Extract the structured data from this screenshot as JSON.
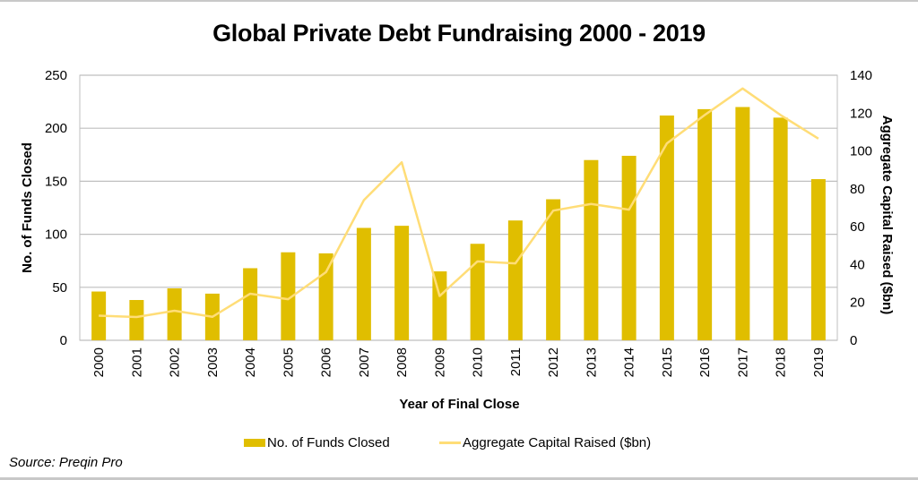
{
  "chart_data": {
    "type": "bar",
    "title": "Global Private Debt Fundraising 2000 - 2019",
    "xlabel": "Year of Final Close",
    "ylabel": "No. of Funds Closed",
    "y2label": "Aggregate Capital Raised ($bn)",
    "ylim": [
      0,
      250
    ],
    "y2lim": [
      0,
      140
    ],
    "yticks": [
      0,
      50,
      100,
      150,
      200,
      250
    ],
    "y2ticks": [
      0,
      20,
      40,
      60,
      80,
      100,
      120,
      140
    ],
    "grid": true,
    "legend_position": "bottom",
    "categories": [
      "2000",
      "2001",
      "2002",
      "2003",
      "2004",
      "2005",
      "2006",
      "2007",
      "2008",
      "2009",
      "2010",
      "2011",
      "2012",
      "2013",
      "2014",
      "2015",
      "2016",
      "2017",
      "2018",
      "2019"
    ],
    "series": [
      {
        "name": "No. of Funds Closed",
        "type": "bar",
        "axis": "left",
        "color": "#E0BE00",
        "values": [
          46,
          38,
          49,
          44,
          68,
          83,
          82,
          106,
          108,
          65,
          91,
          113,
          133,
          170,
          174,
          212,
          218,
          220,
          210,
          152
        ]
      },
      {
        "name": "Aggregate Capital Raised ($bn)",
        "type": "line",
        "axis": "right",
        "color": "#FFDD77",
        "values": [
          13,
          12.3,
          15.6,
          12.4,
          24.6,
          21.7,
          36,
          74,
          94,
          23.4,
          41.7,
          40.6,
          68.5,
          72,
          69,
          104,
          119,
          133,
          119,
          106.5
        ]
      }
    ]
  },
  "source": "Source: Preqin Pro"
}
